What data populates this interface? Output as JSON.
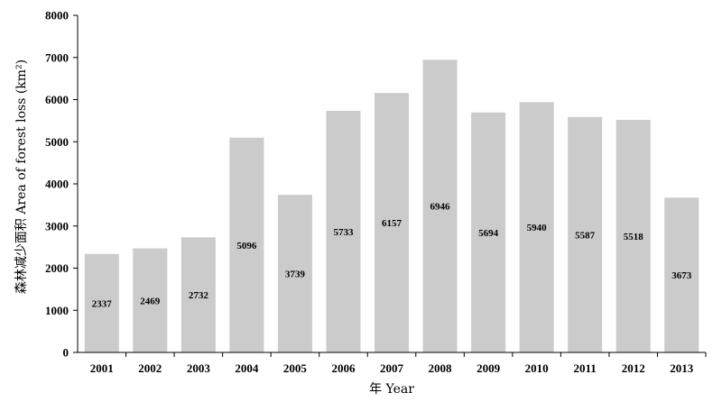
{
  "chart_data": {
    "type": "bar",
    "categories": [
      "2001",
      "2002",
      "2003",
      "2004",
      "2005",
      "2006",
      "2007",
      "2008",
      "2009",
      "2010",
      "2011",
      "2012",
      "2013"
    ],
    "values": [
      2337,
      2469,
      2732,
      5096,
      3739,
      5733,
      6157,
      6946,
      5694,
      5940,
      5587,
      5518,
      3673
    ],
    "data_labels": [
      "2337",
      "2469",
      "2732",
      "5096",
      "3739",
      "5733",
      "6157",
      "6946",
      "5694",
      "5940",
      "5587",
      "5518",
      "3673"
    ],
    "title": "",
    "xlabel": "年 Year",
    "ylabel": "森林减少面积 Area of forest loss (km²)",
    "ylim": [
      0,
      8000
    ],
    "yticks": [
      0,
      1000,
      2000,
      3000,
      4000,
      5000,
      6000,
      7000,
      8000
    ],
    "ytick_labels": [
      "0",
      "1000",
      "2000",
      "3000",
      "4000",
      "5000",
      "6000",
      "7000",
      "8000"
    ],
    "grid": false,
    "legend": "none",
    "bar_color": "#cbcbcb"
  }
}
